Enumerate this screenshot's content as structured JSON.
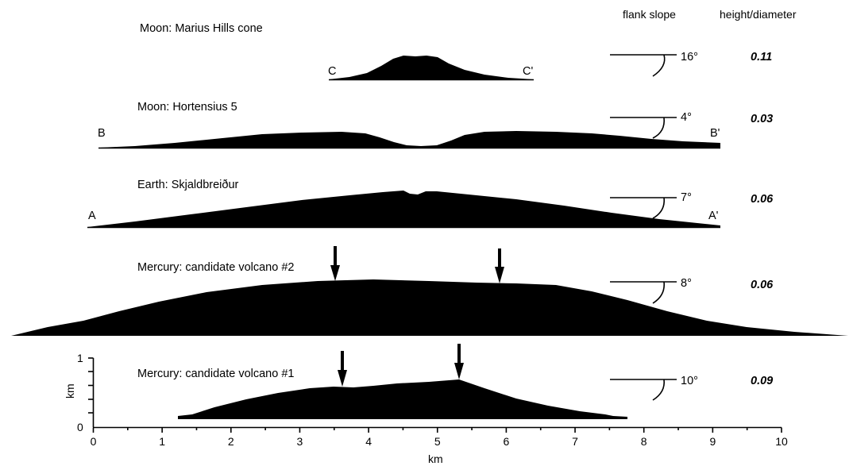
{
  "headers": {
    "flank_slope": "flank slope",
    "height_diameter": "height/diameter"
  },
  "profiles": [
    {
      "title": "Moon: Marius Hills cone",
      "start": "C",
      "end": "C'",
      "slope": "16°",
      "ratio": "0.11"
    },
    {
      "title": "Moon: Hortensius 5",
      "start": "B",
      "end": "B'",
      "slope": "4°",
      "ratio": "0.03"
    },
    {
      "title": "Earth: Skjaldbreiður",
      "start": "A",
      "end": "A'",
      "slope": "7°",
      "ratio": "0.06"
    },
    {
      "title": "Mercury: candidate volcano #2",
      "start": "",
      "end": "",
      "slope": "8°",
      "ratio": "0.06"
    },
    {
      "title": "Mercury: candidate volcano #1",
      "start": "",
      "end": "",
      "slope": "10°",
      "ratio": "0.09"
    }
  ],
  "axes": {
    "x_label": "km",
    "x_ticks": [
      "0",
      "1",
      "2",
      "3",
      "4",
      "5",
      "6",
      "7",
      "8",
      "9",
      "10"
    ],
    "y_label": "km",
    "y_ticks": [
      "0",
      "1"
    ]
  }
}
